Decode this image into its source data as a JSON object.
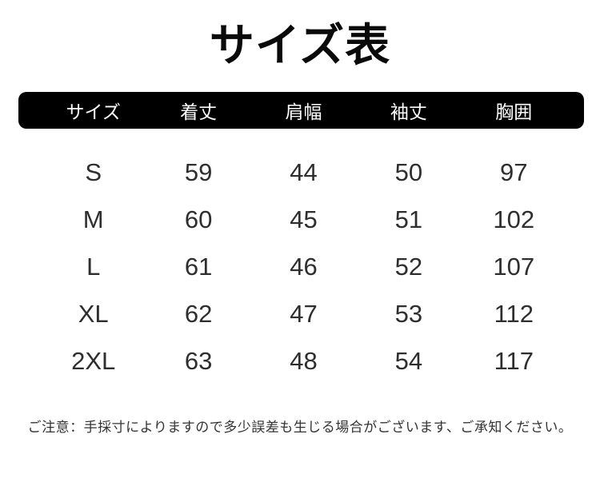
{
  "title": "サイズ表",
  "table": {
    "headers": [
      "サイズ",
      "着丈",
      "肩幅",
      "袖丈",
      "胸囲"
    ],
    "rows": [
      [
        "S",
        "59",
        "44",
        "50",
        "97"
      ],
      [
        "M",
        "60",
        "45",
        "51",
        "102"
      ],
      [
        "L",
        "61",
        "46",
        "52",
        "107"
      ],
      [
        "XL",
        "62",
        "47",
        "53",
        "112"
      ],
      [
        "2XL",
        "63",
        "48",
        "54",
        "117"
      ]
    ]
  },
  "note": "ご注意：手採寸によりますので多少誤差も生じる場合がございます、ご承知ください。",
  "colors": {
    "header_bg": "#000000",
    "header_text": "#ffffff",
    "body_text": "#2e2e2e",
    "title_text": "#0a0a0a"
  }
}
